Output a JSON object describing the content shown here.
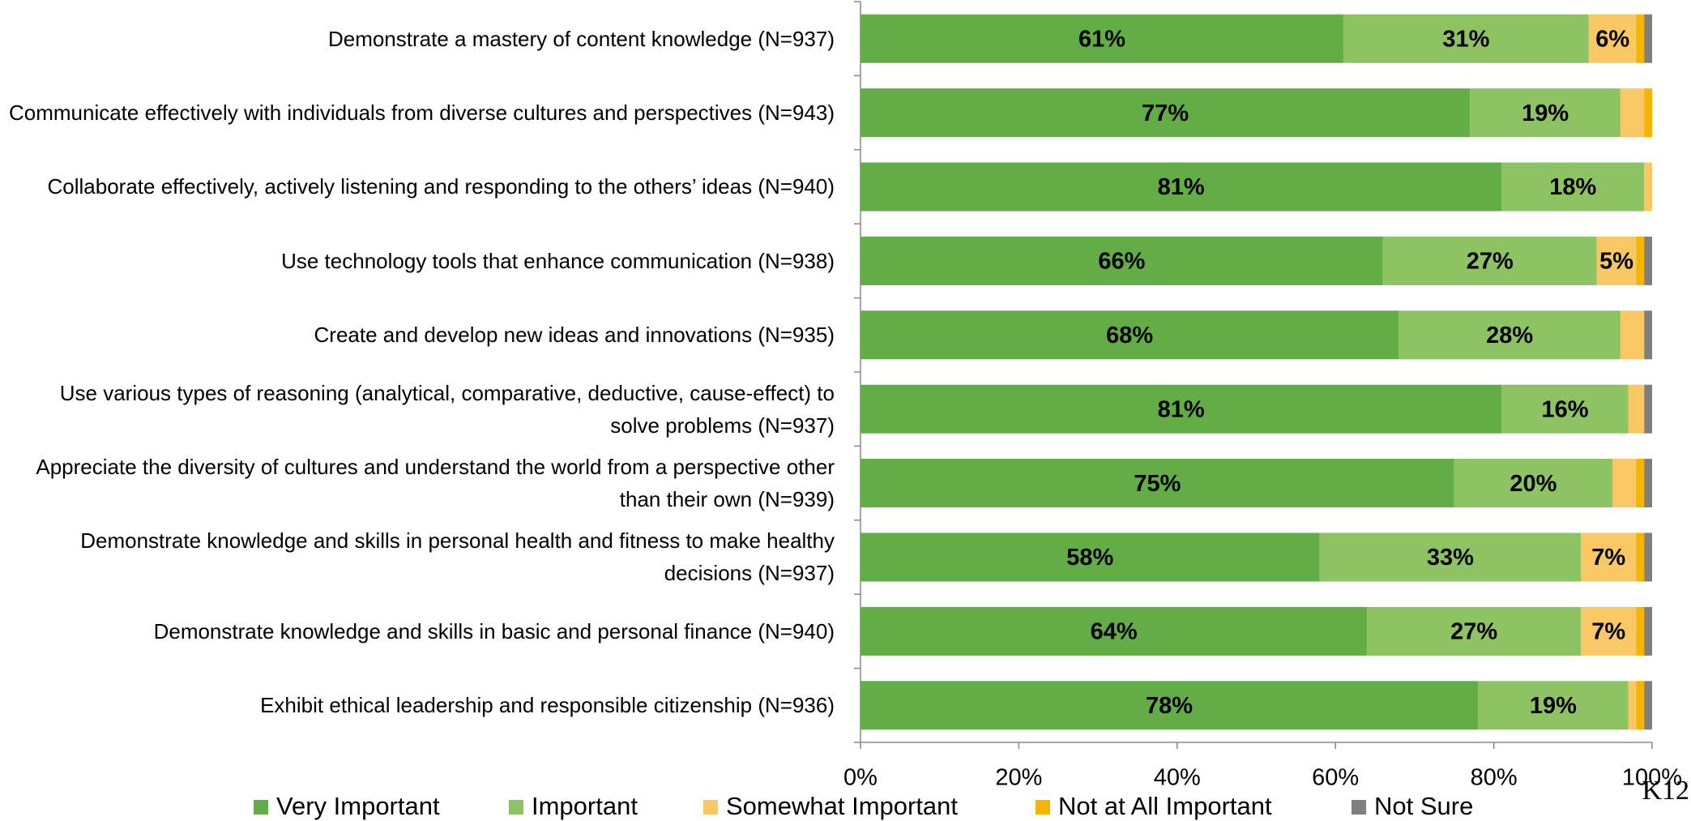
{
  "chart_data": {
    "type": "bar",
    "orientation": "horizontal",
    "stacked": true,
    "categories": [
      "Demonstrate a mastery of content knowledge (N=937)",
      "Communicate effectively with individuals from diverse cultures and perspectives (N=943)",
      "Collaborate effectively, actively listening and responding to the others’ ideas (N=940)",
      "Use technology tools that enhance communication (N=938)",
      "Create and develop new ideas and innovations (N=935)",
      "Use various types of reasoning (analytical, comparative, deductive, cause-effect) to solve problems (N=937)",
      "Appreciate the diversity of cultures and understand the world from a perspective other than their own (N=939)",
      "Demonstrate knowledge and skills in personal health and fitness to make healthy decisions (N=937)",
      "Demonstrate knowledge and skills in basic and personal finance (N=940)",
      "Exhibit ethical leadership and responsible citizenship (N=936)"
    ],
    "series": [
      {
        "name": "Very Important",
        "color": "#62ad46",
        "values": [
          61,
          77,
          81,
          66,
          68,
          81,
          75,
          58,
          64,
          78
        ],
        "value_labels": [
          "61%",
          "77%",
          "81%",
          "66%",
          "68%",
          "81%",
          "75%",
          "58%",
          "64%",
          "78%"
        ]
      },
      {
        "name": "Important",
        "color": "#8dc363",
        "values": [
          31,
          19,
          18,
          27,
          28,
          16,
          20,
          33,
          27,
          19
        ],
        "value_labels": [
          "31%",
          "19%",
          "18%",
          "27%",
          "28%",
          "16%",
          "20%",
          "33%",
          "27%",
          "19%"
        ]
      },
      {
        "name": "Somewhat Important",
        "color": "#f9c764",
        "values": [
          6,
          3,
          1,
          5,
          3,
          2,
          3,
          7,
          7,
          1
        ],
        "value_labels": [
          "6%",
          null,
          null,
          "5%",
          null,
          null,
          null,
          "7%",
          "7%",
          null
        ]
      },
      {
        "name": "Not at All Important",
        "color": "#f5b400",
        "values": [
          1,
          1,
          0,
          1,
          0,
          0,
          1,
          1,
          1,
          1
        ]
      },
      {
        "name": "Not Sure",
        "color": "#7f7f7f",
        "values": [
          1,
          0,
          0,
          1,
          1,
          1,
          1,
          1,
          1,
          1
        ]
      }
    ],
    "xlim": [
      0,
      100
    ],
    "xticks": [
      {
        "value": 0,
        "label": "0%"
      },
      {
        "value": 20,
        "label": "20%"
      },
      {
        "value": 40,
        "label": "40%"
      },
      {
        "value": 60,
        "label": "60%"
      },
      {
        "value": 80,
        "label": "80%"
      },
      {
        "value": 100,
        "label": "100%"
      }
    ],
    "annotation": "K12",
    "legend": "bottom"
  }
}
